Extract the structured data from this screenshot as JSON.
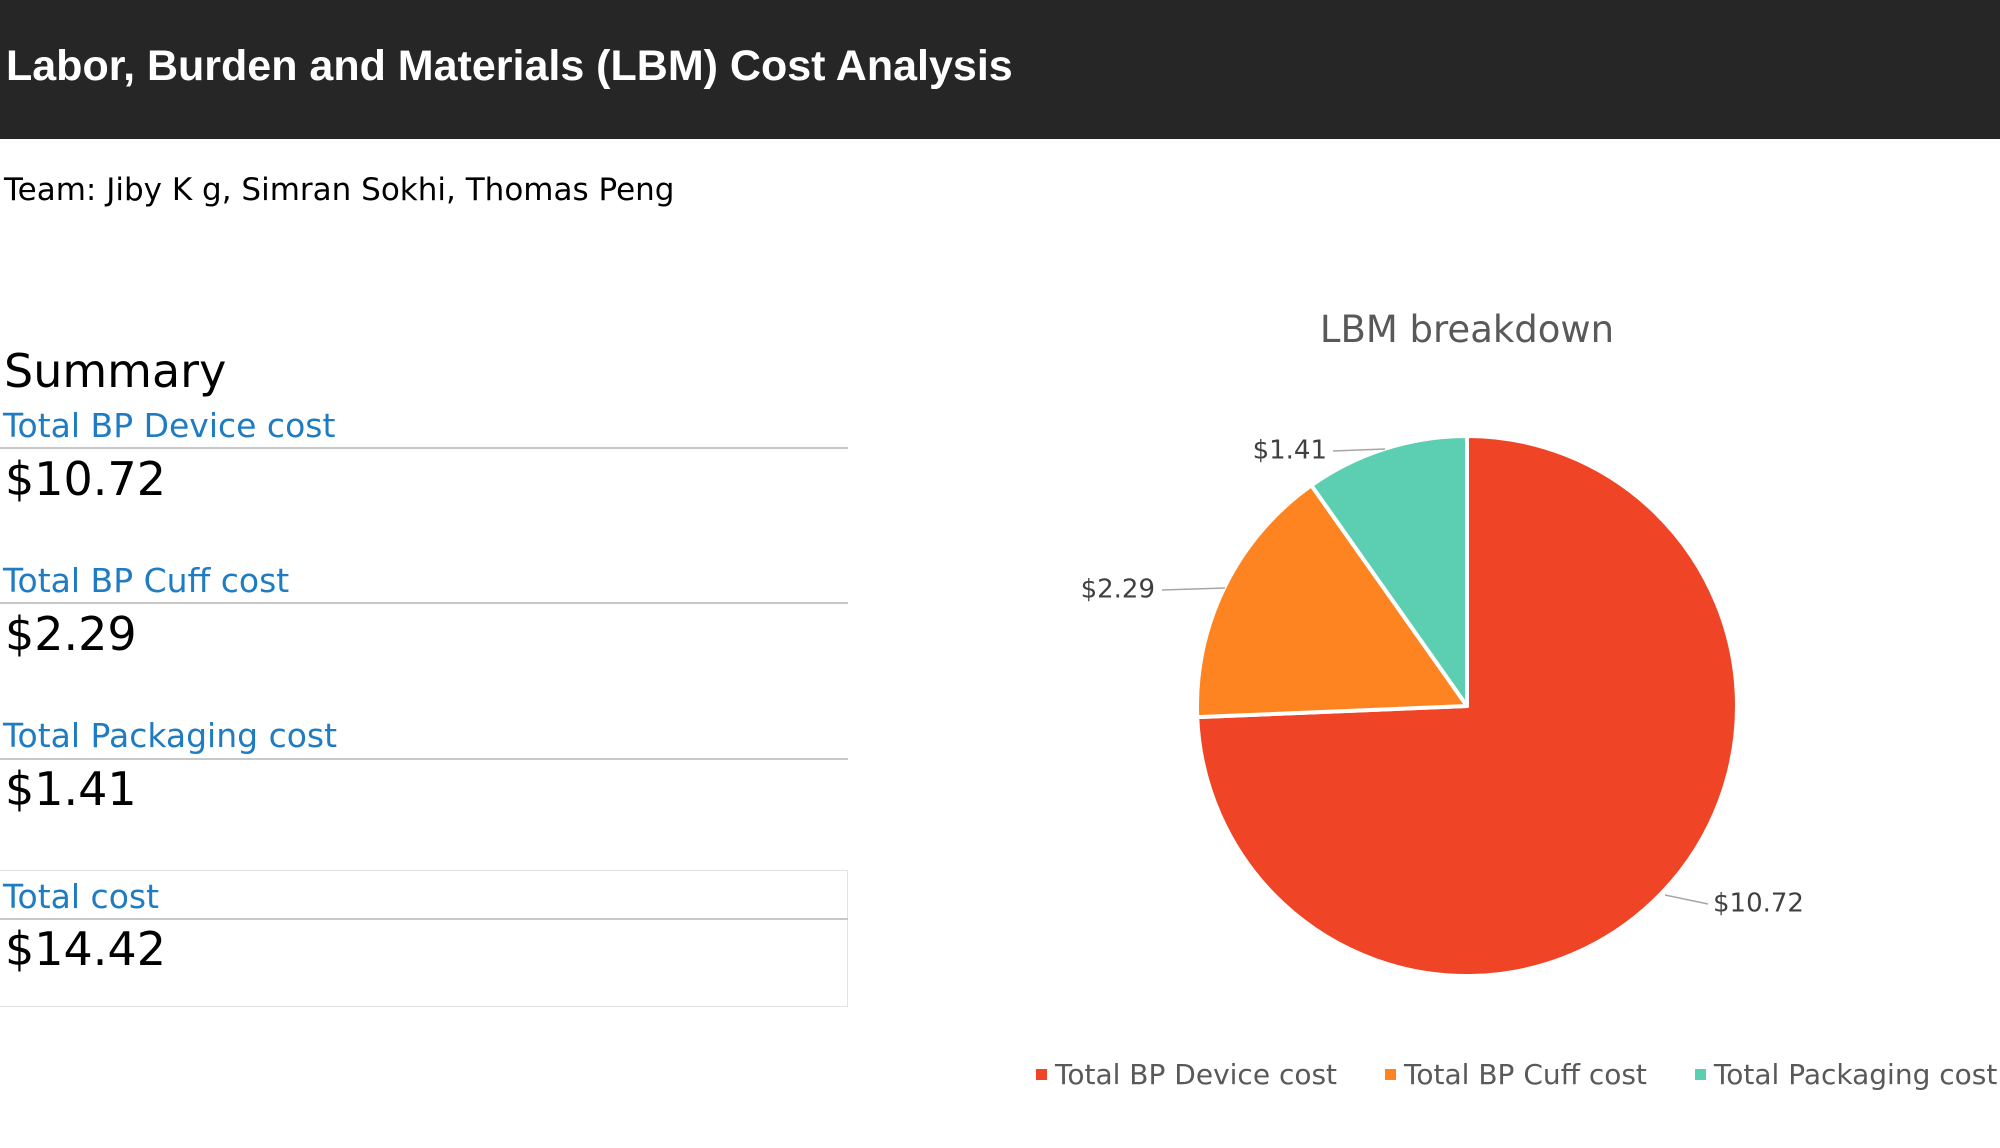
{
  "header": {
    "title": "Labor, Burden and Materials (LBM) Cost Analysis"
  },
  "team": "Team: Jiby K g, Simran Sokhi, Thomas Peng",
  "summary": {
    "heading": "Summary",
    "items": [
      {
        "label": "Total BP Device cost",
        "value": "$10.72"
      },
      {
        "label": "Total BP Cuff cost",
        "value": "$2.29"
      },
      {
        "label": "Total Packaging cost",
        "value": "$1.41"
      },
      {
        "label": "Total cost",
        "value": "$14.42"
      }
    ]
  },
  "colors": {
    "header_bg": "#262626",
    "label_blue": "#1f7cc2"
  },
  "chart_data": {
    "type": "pie",
    "title": "LBM breakdown",
    "categories": [
      "Total BP Device cost",
      "Total BP Cuff cost",
      "Total Packaging cost"
    ],
    "values": [
      10.72,
      2.29,
      1.41
    ],
    "data_labels": [
      "$10.72",
      "$2.29",
      "$1.41"
    ],
    "colors": [
      "#f04427",
      "#fd8421",
      "#5ccfb2"
    ],
    "legend": "bottom",
    "start": "top, clockwise"
  }
}
